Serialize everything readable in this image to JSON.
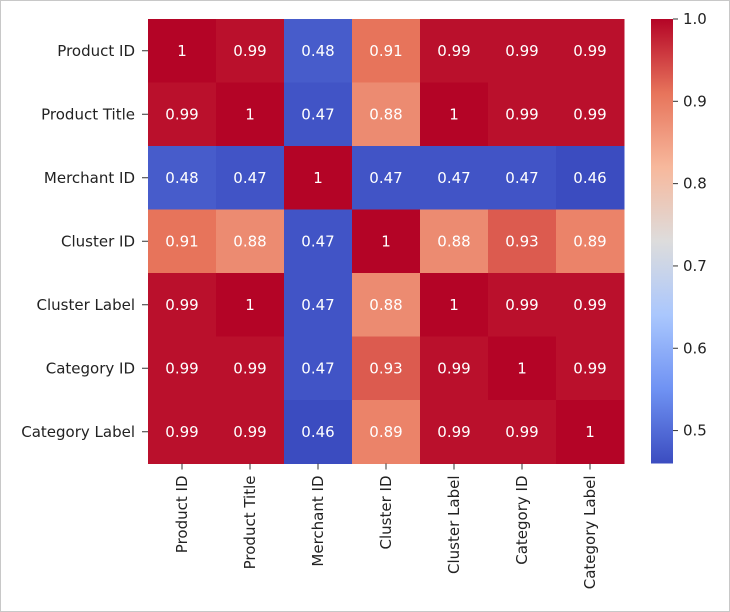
{
  "chart_data": {
    "type": "heatmap",
    "title": "",
    "xlabel": "",
    "ylabel": "",
    "row_labels": [
      "Product ID",
      "Product Title",
      "Merchant ID",
      "Cluster ID",
      "Cluster Label",
      "Category ID",
      "Category Label"
    ],
    "col_labels": [
      "Product ID",
      "Product Title",
      "Merchant ID",
      "Cluster ID",
      "Cluster Label",
      "Category ID",
      "Category Label"
    ],
    "values": [
      [
        1,
        0.99,
        0.48,
        0.91,
        0.99,
        0.99,
        0.99
      ],
      [
        0.99,
        1,
        0.47,
        0.88,
        1,
        0.99,
        0.99
      ],
      [
        0.48,
        0.47,
        1,
        0.47,
        0.47,
        0.47,
        0.46
      ],
      [
        0.91,
        0.88,
        0.47,
        1,
        0.88,
        0.93,
        0.89
      ],
      [
        0.99,
        1,
        0.47,
        0.88,
        1,
        0.99,
        0.99
      ],
      [
        0.99,
        0.99,
        0.47,
        0.93,
        0.99,
        1,
        0.99
      ],
      [
        0.99,
        0.99,
        0.46,
        0.89,
        0.99,
        0.99,
        1
      ]
    ],
    "annotations": [
      [
        "1",
        "0.99",
        "0.48",
        "0.91",
        "0.99",
        "0.99",
        "0.99"
      ],
      [
        "0.99",
        "1",
        "0.47",
        "0.88",
        "1",
        "0.99",
        "0.99"
      ],
      [
        "0.48",
        "0.47",
        "1",
        "0.47",
        "0.47",
        "0.47",
        "0.46"
      ],
      [
        "0.91",
        "0.88",
        "0.47",
        "1",
        "0.88",
        "0.93",
        "0.89"
      ],
      [
        "0.99",
        "1",
        "0.47",
        "0.88",
        "1",
        "0.99",
        "0.99"
      ],
      [
        "0.99",
        "0.99",
        "0.47",
        "0.93",
        "0.99",
        "1",
        "0.99"
      ],
      [
        "0.99",
        "0.99",
        "0.46",
        "0.89",
        "0.99",
        "0.99",
        "1"
      ]
    ],
    "colormap": "coolwarm",
    "colormap_stops": [
      "#3b4cc0",
      "#6f92f3",
      "#aac7fd",
      "#dddcdc",
      "#f7b89c",
      "#e7745b",
      "#b40426"
    ],
    "vmin": 0.46,
    "vmax": 1.0,
    "colorbar_ticks": [
      0.5,
      0.6,
      0.7,
      0.8,
      0.9,
      1.0
    ],
    "colorbar_tick_labels": [
      "0.5",
      "0.6",
      "0.7",
      "0.8",
      "0.9",
      "1.0"
    ],
    "annotation_text_color": "#ffffff",
    "label_text_color": "#222222"
  }
}
